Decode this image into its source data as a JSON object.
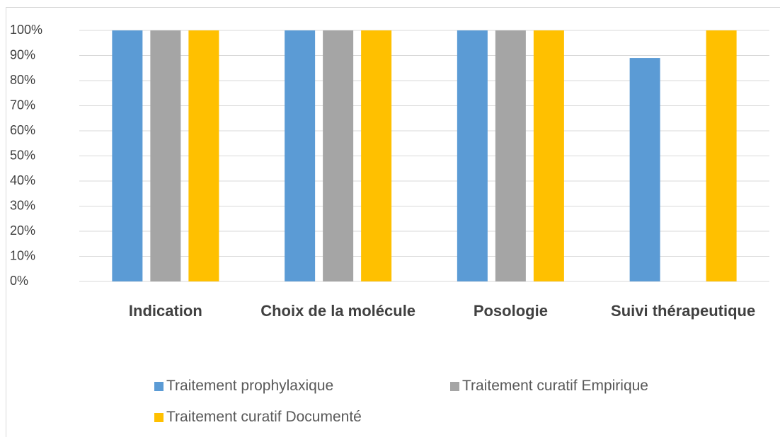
{
  "chart_data": {
    "type": "bar",
    "categories": [
      "Indication",
      "Choix de la molécule",
      "Posologie",
      "Suivi thérapeutique"
    ],
    "series": [
      {
        "name": "Traitement prophylaxique",
        "color": "#5b9bd5",
        "values": [
          100,
          100,
          100,
          89
        ]
      },
      {
        "name": "Traitement curatif Empirique",
        "color": "#a5a5a5",
        "values": [
          100,
          100,
          100,
          0
        ]
      },
      {
        "name": "Traitement curatif Documenté",
        "color": "#ffc000",
        "values": [
          100,
          100,
          100,
          100
        ]
      }
    ],
    "ylim": [
      0,
      100
    ],
    "yticks": [
      {
        "value": 0,
        "label": "0%"
      },
      {
        "value": 10,
        "label": "10%"
      },
      {
        "value": 20,
        "label": "20%"
      },
      {
        "value": 30,
        "label": "30%"
      },
      {
        "value": 40,
        "label": "40%"
      },
      {
        "value": 50,
        "label": "50%"
      },
      {
        "value": 60,
        "label": "60%"
      },
      {
        "value": 70,
        "label": "70%"
      },
      {
        "value": 80,
        "label": "80%"
      },
      {
        "value": 90,
        "label": "90%"
      },
      {
        "value": 100,
        "label": "100%"
      }
    ],
    "grid": true,
    "legend": "bottom"
  }
}
